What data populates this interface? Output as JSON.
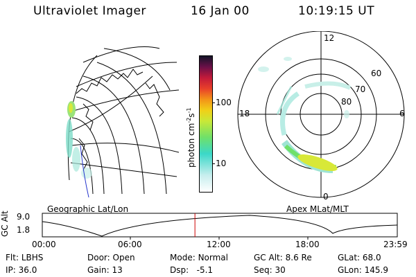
{
  "header": {
    "instrument": "Ultraviolet Imager",
    "date": "16 Jan 00",
    "time": "10:19:15 UT"
  },
  "colorbar": {
    "unit": "photon cm",
    "unit_exp1": "-2",
    "unit_s": "s",
    "unit_exp2": "-1",
    "ticks": [
      "100",
      "10"
    ]
  },
  "geo_panel": {
    "label": "Geographic Lat/Lon"
  },
  "polar_panel": {
    "label": "Apex MLat/MLT",
    "mlt_labels": {
      "top": "12",
      "left": "18",
      "right": "6",
      "bottom": "0"
    },
    "lat_labels": [
      "60",
      "70",
      "80"
    ]
  },
  "altitude_plot": {
    "ylabel": "GC Alt",
    "ymax": "9.0",
    "ymin": "1.8",
    "time_ticks": [
      "00:00",
      "06:00",
      "12:00",
      "18:00",
      "23:59"
    ],
    "current_time_marker_hours": 10.32
  },
  "info": {
    "filter_label": "Flt:",
    "filter_value": "LBHS",
    "ip_label": "IP:",
    "ip_value": "36.0",
    "door_label": "Door:",
    "door_value": "Open",
    "gain_label": "Gain:",
    "gain_value": "13",
    "mode_label": "Mode:",
    "mode_value": "Normal",
    "dsp_label": "Dsp:",
    "dsp_value": "-5.1",
    "gcalt_label": "GC Alt:",
    "gcalt_value": "8.6 Re",
    "seq_label": "Seq:",
    "seq_value": "30",
    "glat_label": "GLat:",
    "glat_value": "68.0",
    "glon_label": "GLon:",
    "glon_value": "145.9"
  },
  "colors": {
    "marker": "#cc0000",
    "grid": "#000000"
  }
}
